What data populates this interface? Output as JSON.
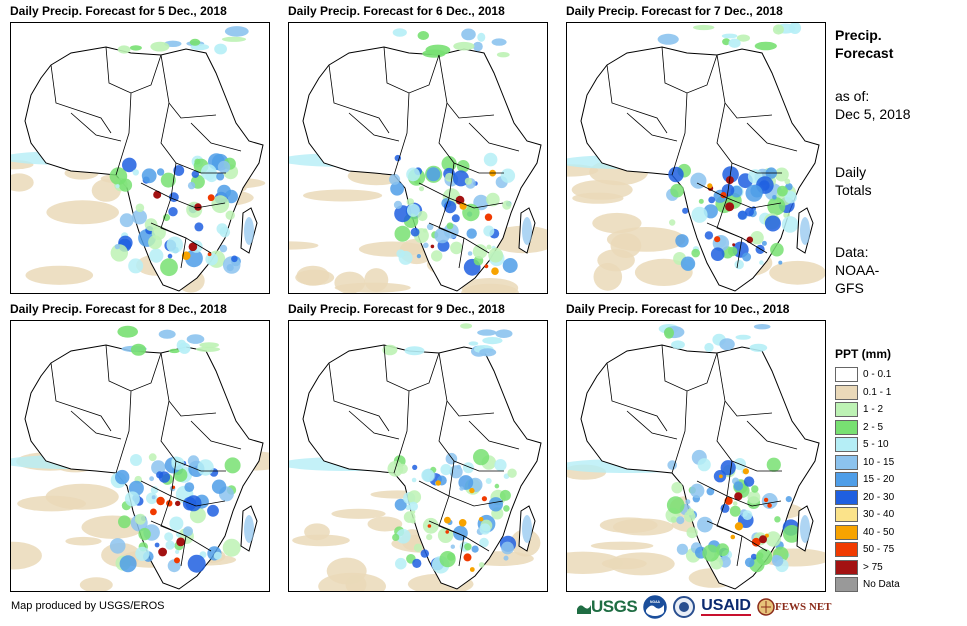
{
  "panels": [
    {
      "title": "Daily Precip. Forecast for 5 Dec., 2018"
    },
    {
      "title": "Daily Precip. Forecast for 6 Dec., 2018"
    },
    {
      "title": "Daily Precip. Forecast for 7 Dec., 2018"
    },
    {
      "title": "Daily Precip. Forecast for 8 Dec., 2018"
    },
    {
      "title": "Daily Precip. Forecast for 9 Dec., 2018"
    },
    {
      "title": "Daily Precip. Forecast for 10 Dec., 2018"
    }
  ],
  "info": {
    "heading_line1": "Precip.",
    "heading_line2": "Forecast",
    "asof_line1": "as of:",
    "asof_line2": "Dec 5, 2018",
    "totals_line1": "Daily",
    "totals_line2": "Totals",
    "data_line1": "Data:",
    "data_line2": "NOAA-",
    "data_line3": "GFS"
  },
  "legend": {
    "title": "PPT (mm)",
    "items": [
      {
        "label": "0 - 0.1",
        "color": "#ffffff"
      },
      {
        "label": "0.1 - 1",
        "color": "#ead9b9"
      },
      {
        "label": "1 - 2",
        "color": "#bdf2b4"
      },
      {
        "label": "2 - 5",
        "color": "#78e072"
      },
      {
        "label": "5 - 10",
        "color": "#b5eef6"
      },
      {
        "label": "10 - 15",
        "color": "#8cc3ee"
      },
      {
        "label": "15 - 20",
        "color": "#4f9ee8"
      },
      {
        "label": "20 - 30",
        "color": "#1f5fe0"
      },
      {
        "label": "30 - 40",
        "color": "#fbe38a"
      },
      {
        "label": "40 - 50",
        "color": "#f7a300"
      },
      {
        "label": "50 - 75",
        "color": "#f03a00"
      },
      {
        "label": "> 75",
        "color": "#a31212"
      },
      {
        "label": "No Data",
        "color": "#999999"
      }
    ]
  },
  "credit": "Map produced by USGS/EROS",
  "logos": {
    "usgs": "USGS",
    "noaa": "NOAA",
    "usaid": "USAID",
    "fewsnet": "FEWS NET"
  }
}
